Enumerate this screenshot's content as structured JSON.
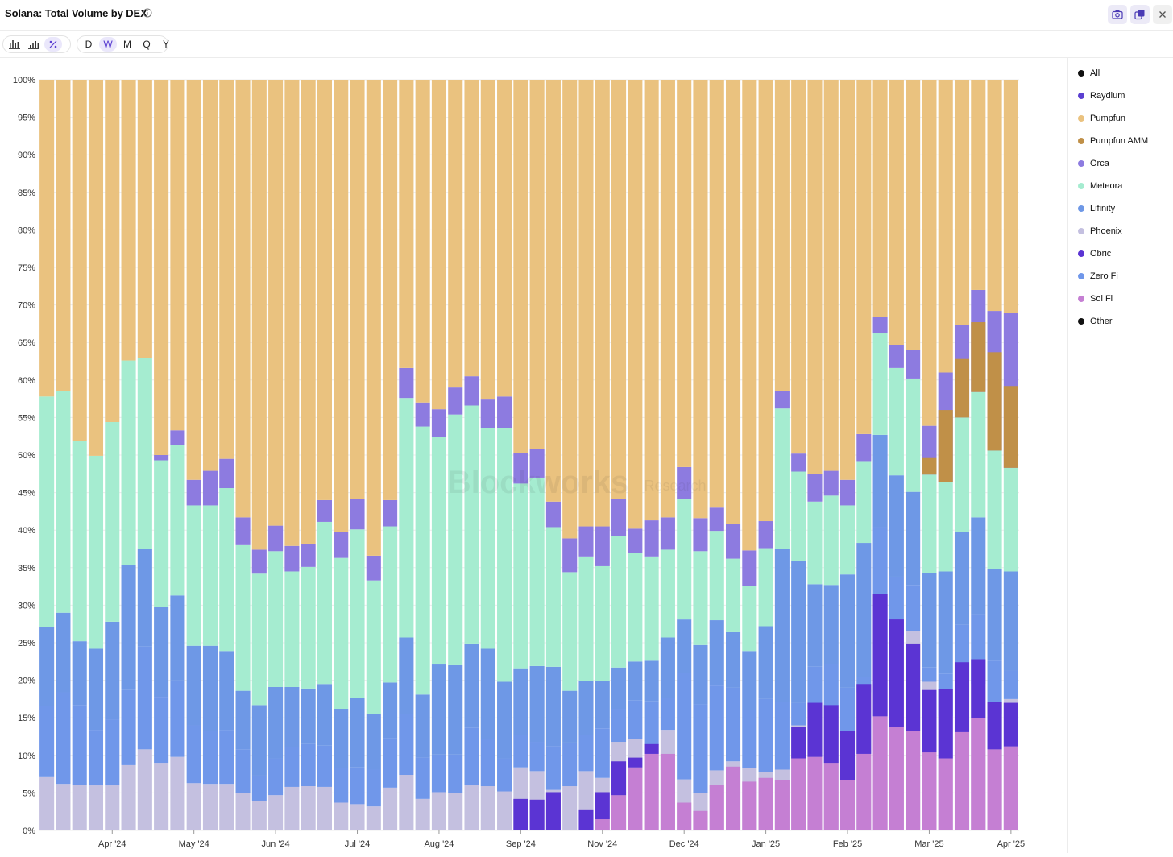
{
  "header": {
    "title": "Solana: Total Volume by DEX",
    "info_icon": "info-icon",
    "camera_icon": "camera-icon",
    "copy_icon": "copy-icon",
    "close_icon": "close-icon"
  },
  "toolbar": {
    "chart_types": [
      "bar-chart-icon",
      "stacked-bar-icon",
      "percent-icon"
    ],
    "active_chart_type": "percent-icon",
    "intervals": [
      "D",
      "W",
      "M",
      "Q",
      "Y"
    ],
    "active_interval": "W"
  },
  "watermark": {
    "main": "Blockworks",
    "sub": "Research"
  },
  "chart_data": {
    "type": "bar",
    "stacked": true,
    "normalized": true,
    "title": "Solana: Total Volume by DEX",
    "ylim": [
      0,
      100
    ],
    "yticks": [
      "0%",
      "5%",
      "10%",
      "15%",
      "20%",
      "25%",
      "30%",
      "35%",
      "40%",
      "45%",
      "50%",
      "55%",
      "60%",
      "65%",
      "70%",
      "75%",
      "80%",
      "85%",
      "90%",
      "95%",
      "100%"
    ],
    "xtick_labels": [
      {
        "index": 4.5,
        "label": "Apr '24"
      },
      {
        "index": 9.5,
        "label": "May '24"
      },
      {
        "index": 14.5,
        "label": "Jun '24"
      },
      {
        "index": 19.5,
        "label": "Jul '24"
      },
      {
        "index": 24.5,
        "label": "Aug '24"
      },
      {
        "index": 29.5,
        "label": "Sep '24"
      },
      {
        "index": 34.5,
        "label": "Nov '24"
      },
      {
        "index": 39.5,
        "label": "Dec '24"
      },
      {
        "index": 44.5,
        "label": "Jan '25"
      },
      {
        "index": 49.5,
        "label": "Feb '25"
      },
      {
        "index": 54.5,
        "label": "Mar '25"
      },
      {
        "index": 59.5,
        "label": "Apr '25"
      }
    ],
    "grid": true,
    "legend_position": "right",
    "num_weeks": 60,
    "stack_order": [
      "Phoenix",
      "Zero Fi",
      "Lifinity",
      "Meteora",
      "Orca",
      "Pumpfun",
      "Raydium"
    ],
    "boundaries": [
      [
        0,
        7.1,
        16.6,
        27.1,
        57.8,
        57.8,
        100
      ],
      [
        0,
        6.2,
        18.4,
        29.0,
        58.5,
        58.5,
        100
      ],
      [
        0,
        6.1,
        16.7,
        25.2,
        51.9,
        51.9,
        100
      ],
      [
        0,
        6.0,
        13.4,
        24.2,
        49.9,
        49.9,
        100
      ],
      [
        0,
        6.0,
        14.8,
        27.8,
        54.4,
        54.4,
        100
      ],
      [
        0,
        8.7,
        18.7,
        35.3,
        62.6,
        62.6,
        100
      ],
      [
        0,
        10.8,
        24.5,
        37.5,
        62.9,
        62.9,
        100
      ],
      [
        0,
        9.0,
        17.8,
        29.8,
        49.3,
        50.0,
        100
      ],
      [
        0,
        9.8,
        20.0,
        31.3,
        51.3,
        53.3,
        100
      ],
      [
        0,
        6.3,
        14.0,
        24.6,
        43.3,
        46.7,
        100
      ],
      [
        0,
        6.2,
        13.3,
        24.6,
        43.3,
        47.9,
        100
      ],
      [
        0,
        6.2,
        13.4,
        23.9,
        45.6,
        49.5,
        100
      ],
      [
        0,
        5.0,
        10.8,
        18.6,
        38.0,
        41.7,
        100
      ],
      [
        0,
        3.9,
        7.3,
        16.7,
        34.2,
        37.4,
        100
      ],
      [
        0,
        4.7,
        9.6,
        19.1,
        37.2,
        40.6,
        100
      ],
      [
        0,
        5.8,
        11.1,
        19.1,
        34.5,
        37.9,
        100
      ],
      [
        0,
        5.9,
        11.5,
        18.9,
        35.1,
        38.2,
        100
      ],
      [
        0,
        5.8,
        11.3,
        19.5,
        41.1,
        44.0,
        100
      ],
      [
        0,
        3.7,
        8.3,
        16.2,
        36.3,
        39.8,
        100
      ],
      [
        0,
        3.5,
        8.4,
        17.6,
        40.1,
        44.1,
        100
      ],
      [
        0,
        3.2,
        8.1,
        15.5,
        33.3,
        36.6,
        100
      ],
      [
        0,
        5.7,
        12.3,
        19.7,
        40.5,
        44.0,
        100
      ],
      [
        0,
        7.4,
        15.5,
        25.7,
        57.6,
        61.6,
        100
      ],
      [
        0,
        4.2,
        9.7,
        18.1,
        53.8,
        57.0,
        100
      ],
      [
        0,
        5.1,
        10.1,
        22.1,
        52.4,
        56.1,
        100
      ],
      [
        0,
        5.0,
        10.1,
        22.0,
        55.4,
        59.0,
        100
      ],
      [
        0,
        6.0,
        13.7,
        24.9,
        56.6,
        60.5,
        100
      ],
      [
        0,
        5.9,
        12.2,
        24.2,
        53.6,
        57.5,
        100
      ],
      [
        0,
        5.2,
        9.6,
        19.8,
        53.6,
        57.8,
        100
      ],
      [
        0,
        8.4,
        12.7,
        21.6,
        46.2,
        50.3,
        100
      ],
      [
        0,
        7.9,
        11.8,
        21.9,
        47.0,
        50.8,
        100
      ],
      [
        0,
        5.4,
        11.2,
        21.8,
        40.4,
        43.8,
        100
      ],
      [
        0,
        5.9,
        11.7,
        18.6,
        34.4,
        38.9,
        100
      ],
      [
        0,
        7.9,
        12.7,
        19.9,
        36.5,
        40.5,
        100
      ],
      [
        0,
        7.0,
        13.6,
        19.9,
        35.2,
        40.5,
        100
      ],
      [
        0,
        11.8,
        16.2,
        21.7,
        39.2,
        44.1,
        100
      ],
      [
        0,
        12.2,
        17.3,
        22.5,
        37.0,
        40.2,
        100
      ],
      [
        0,
        11.4,
        17.2,
        22.6,
        36.5,
        41.3,
        100
      ],
      [
        0,
        13.4,
        17.6,
        25.7,
        37.4,
        41.7,
        100
      ],
      [
        0,
        6.8,
        21.0,
        28.1,
        44.1,
        48.4,
        100
      ],
      [
        0,
        5.0,
        16.8,
        24.7,
        37.2,
        41.6,
        100
      ],
      [
        0,
        8.0,
        19.3,
        28.0,
        39.9,
        43.0,
        100
      ],
      [
        0,
        9.2,
        19.0,
        26.4,
        36.2,
        40.8,
        100
      ],
      [
        0,
        8.3,
        16.0,
        23.9,
        32.6,
        37.3,
        100
      ],
      [
        0,
        7.8,
        17.5,
        27.2,
        37.6,
        41.2,
        100
      ],
      [
        0,
        8.1,
        17.1,
        37.5,
        56.2,
        58.5,
        100
      ],
      [
        0,
        14.0,
        17.0,
        35.9,
        47.8,
        50.2,
        100
      ],
      [
        0,
        15.8,
        21.8,
        32.8,
        43.8,
        47.5,
        100
      ],
      [
        0,
        16.6,
        22.2,
        32.7,
        44.6,
        47.9,
        100
      ],
      [
        0,
        12.1,
        19.0,
        34.1,
        43.3,
        46.7,
        100
      ],
      [
        0,
        18.4,
        20.4,
        38.3,
        49.2,
        52.8,
        100
      ],
      [
        0,
        22.6,
        40.4,
        52.7,
        66.2,
        68.4,
        100
      ],
      [
        0,
        26.0,
        33.8,
        47.3,
        61.6,
        64.7,
        100
      ],
      [
        0,
        26.5,
        32.7,
        45.1,
        60.2,
        64.0,
        100
      ],
      [
        0,
        19.8,
        21.7,
        34.3,
        47.4,
        53.9,
        100
      ],
      [
        0,
        15.2,
        20.9,
        34.5,
        46.4,
        61.0,
        100
      ],
      [
        0,
        20.1,
        27.4,
        39.7,
        55.0,
        67.3,
        100
      ],
      [
        0,
        19.5,
        28.8,
        41.7,
        58.4,
        72.0,
        100
      ],
      [
        0,
        15.5,
        22.6,
        34.8,
        50.6,
        69.2,
        100
      ],
      [
        0,
        17.5,
        21.3,
        34.5,
        48.3,
        68.9,
        100
      ]
    ],
    "extra_segments": [
      {
        "series": "Sol Fi",
        "bars": [
          {
            "index": 34,
            "from": 0,
            "to": 1.5
          },
          {
            "index": 35,
            "from": 0,
            "to": 4.7
          },
          {
            "index": 36,
            "from": 0,
            "to": 8.4
          },
          {
            "index": 37,
            "from": 0,
            "to": 10.2
          },
          {
            "index": 38,
            "from": 0,
            "to": 10.2
          },
          {
            "index": 39,
            "from": 0,
            "to": 3.7
          },
          {
            "index": 40,
            "from": 0,
            "to": 2.6
          },
          {
            "index": 41,
            "from": 0,
            "to": 6.1
          },
          {
            "index": 42,
            "from": 0,
            "to": 8.5
          },
          {
            "index": 43,
            "from": 0,
            "to": 6.5
          },
          {
            "index": 44,
            "from": 0,
            "to": 7.0
          },
          {
            "index": 45,
            "from": 0,
            "to": 6.7
          },
          {
            "index": 46,
            "from": 0,
            "to": 9.6
          },
          {
            "index": 47,
            "from": 0,
            "to": 9.8
          },
          {
            "index": 48,
            "from": 0,
            "to": 9.0
          },
          {
            "index": 49,
            "from": 0,
            "to": 6.7
          },
          {
            "index": 50,
            "from": 0,
            "to": 10.2
          },
          {
            "index": 51,
            "from": 0,
            "to": 15.2
          },
          {
            "index": 52,
            "from": 0,
            "to": 13.8
          },
          {
            "index": 53,
            "from": 0,
            "to": 13.2
          },
          {
            "index": 54,
            "from": 0,
            "to": 10.4
          },
          {
            "index": 55,
            "from": 0,
            "to": 9.6
          },
          {
            "index": 56,
            "from": 0,
            "to": 13.1
          },
          {
            "index": 57,
            "from": 0,
            "to": 15.0
          },
          {
            "index": 58,
            "from": 0,
            "to": 10.8
          },
          {
            "index": 59,
            "from": 0,
            "to": 11.2
          }
        ]
      },
      {
        "series": "Obric",
        "bars": [
          {
            "index": 29,
            "from": 0,
            "to": 4.2
          },
          {
            "index": 30,
            "from": 0,
            "to": 4.1
          },
          {
            "index": 31,
            "from": 0,
            "to": 5.1
          },
          {
            "index": 33,
            "from": 0,
            "to": 2.7
          },
          {
            "index": 34,
            "from": 1.5,
            "to": 5.1
          },
          {
            "index": 35,
            "from": 4.7,
            "to": 9.2
          },
          {
            "index": 36,
            "from": 8.4,
            "to": 9.7
          },
          {
            "index": 37,
            "from": 10.2,
            "to": 11.5
          },
          {
            "index": 46,
            "from": 9.6,
            "to": 13.8
          },
          {
            "index": 47,
            "from": 9.8,
            "to": 17.0
          },
          {
            "index": 48,
            "from": 9.0,
            "to": 16.7
          },
          {
            "index": 49,
            "from": 6.7,
            "to": 13.2
          },
          {
            "index": 50,
            "from": 10.2,
            "to": 19.5
          },
          {
            "index": 51,
            "from": 15.2,
            "to": 31.5
          },
          {
            "index": 52,
            "from": 13.8,
            "to": 28.1
          },
          {
            "index": 53,
            "from": 13.2,
            "to": 24.9
          },
          {
            "index": 54,
            "from": 10.4,
            "to": 18.7
          },
          {
            "index": 55,
            "from": 9.6,
            "to": 18.8
          },
          {
            "index": 56,
            "from": 13.1,
            "to": 22.4
          },
          {
            "index": 57,
            "from": 15.0,
            "to": 22.8
          },
          {
            "index": 58,
            "from": 10.8,
            "to": 17.1
          },
          {
            "index": 59,
            "from": 11.2,
            "to": 17.0
          }
        ]
      },
      {
        "series": "Pumpfun AMM",
        "bars": [
          {
            "index": 54,
            "from": 47.4,
            "to": 49.6
          },
          {
            "index": 55,
            "from": 46.4,
            "to": 56.0
          },
          {
            "index": 56,
            "from": 55.0,
            "to": 62.8
          },
          {
            "index": 57,
            "from": 58.4,
            "to": 67.7
          },
          {
            "index": 58,
            "from": 50.6,
            "to": 63.7
          },
          {
            "index": 59,
            "from": 48.3,
            "to": 59.2
          }
        ]
      }
    ],
    "series": [
      {
        "name": "All",
        "color": "#111111"
      },
      {
        "name": "Raydium",
        "color": "#5b3fd1"
      },
      {
        "name": "Pumpfun",
        "color": "#eac27f"
      },
      {
        "name": "Pumpfun AMM",
        "color": "#c09048"
      },
      {
        "name": "Orca",
        "color": "#8d7be0"
      },
      {
        "name": "Meteora",
        "color": "#a5ecd0"
      },
      {
        "name": "Lifinity",
        "color": "#6e98e6"
      },
      {
        "name": "Phoenix",
        "color": "#c4c0e0"
      },
      {
        "name": "Obric",
        "color": "#5b34d3"
      },
      {
        "name": "Zero Fi",
        "color": "#7097ea"
      },
      {
        "name": "Sol Fi",
        "color": "#c57fd3"
      },
      {
        "name": "Other",
        "color": "#111111"
      }
    ]
  }
}
